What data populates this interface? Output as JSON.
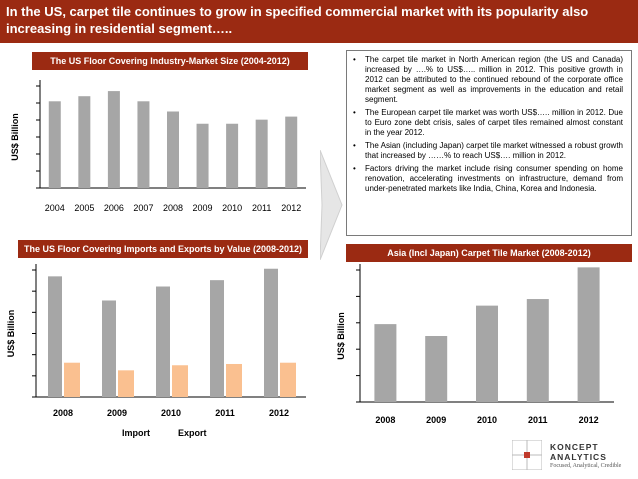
{
  "header": {
    "title": "In the US, carpet tile continues to grow in specified commercial market with its popularity also increasing in residential segment….."
  },
  "charts_titles": {
    "floor_size": "The US Floor Covering Industry-Market Size (2004-2012)",
    "imports_exports": "The US Floor Covering Imports and Exports by Value (2008-2012)",
    "asia": "Asia (Incl Japan) Carpet Tile Market (2008-2012)"
  },
  "chart_data": [
    {
      "type": "bar",
      "title": "The US Floor Covering Industry-Market Size (2004-2012)",
      "ylabel": "US$ Billion",
      "xlabel": "",
      "categories": [
        "2004",
        "2005",
        "2006",
        "2007",
        "2008",
        "2009",
        "2010",
        "2011",
        "2012"
      ],
      "values": [
        85,
        90,
        95,
        85,
        75,
        63,
        63,
        67,
        70
      ],
      "ylim": [
        0,
        100
      ],
      "color": "#a6a6a6"
    },
    {
      "type": "bar",
      "title": "The US Floor Covering Imports and Exports by Value (2008-2012)",
      "ylabel": "US$ Billion",
      "xlabel": "",
      "categories": [
        "2008",
        "2009",
        "2010",
        "2011",
        "2012"
      ],
      "series": [
        {
          "name": "Import",
          "values": [
            95,
            76,
            87,
            92,
            101
          ],
          "color": "#a6a6a6"
        },
        {
          "name": "Export",
          "values": [
            27,
            21,
            25,
            26,
            27
          ],
          "color": "#fac090"
        }
      ],
      "ylim": [
        0,
        100
      ]
    },
    {
      "type": "bar",
      "title": "Asia (Incl Japan) Carpet Tile Market (2008-2012)",
      "ylabel": "US$ Billion",
      "xlabel": "",
      "categories": [
        "2008",
        "2009",
        "2010",
        "2011",
        "2012"
      ],
      "values": [
        59,
        50,
        73,
        78,
        102
      ],
      "ylim": [
        0,
        100
      ],
      "color": "#a6a6a6"
    }
  ],
  "legend": {
    "import": "Import",
    "export": "Export"
  },
  "bullets": [
    "The carpet tile market in North American region (the US and Canada) increased by ….% to US$….. million in 2012. This positive growth in 2012 can be attributed to the continued rebound of the corporate office market segment as well as improvements in the education and retail segment.",
    "The European carpet tile market was worth US$….. million in 2012. Due to Euro zone debt crisis, sales of carpet tiles remained almost constant in the year 2012.",
    "The Asian (including Japan) carpet tile market witnessed a robust growth that increased by ……% to reach US$…. million in 2012.",
    "Factors driving the market include rising consumer spending on home renovation, accelerating investments on infrastructure, demand from under-penetrated markets like India, China, Korea and Indonesia."
  ],
  "bullet_marker": "•",
  "logo": {
    "name_line1": "KONCEPT",
    "name_line2": "ANALYTICS",
    "tagline": "Focused, Analytical, Credible"
  },
  "colors": {
    "header": "#9b2a12",
    "bar_gray": "#a6a6a6",
    "bar_export": "#fac090"
  }
}
